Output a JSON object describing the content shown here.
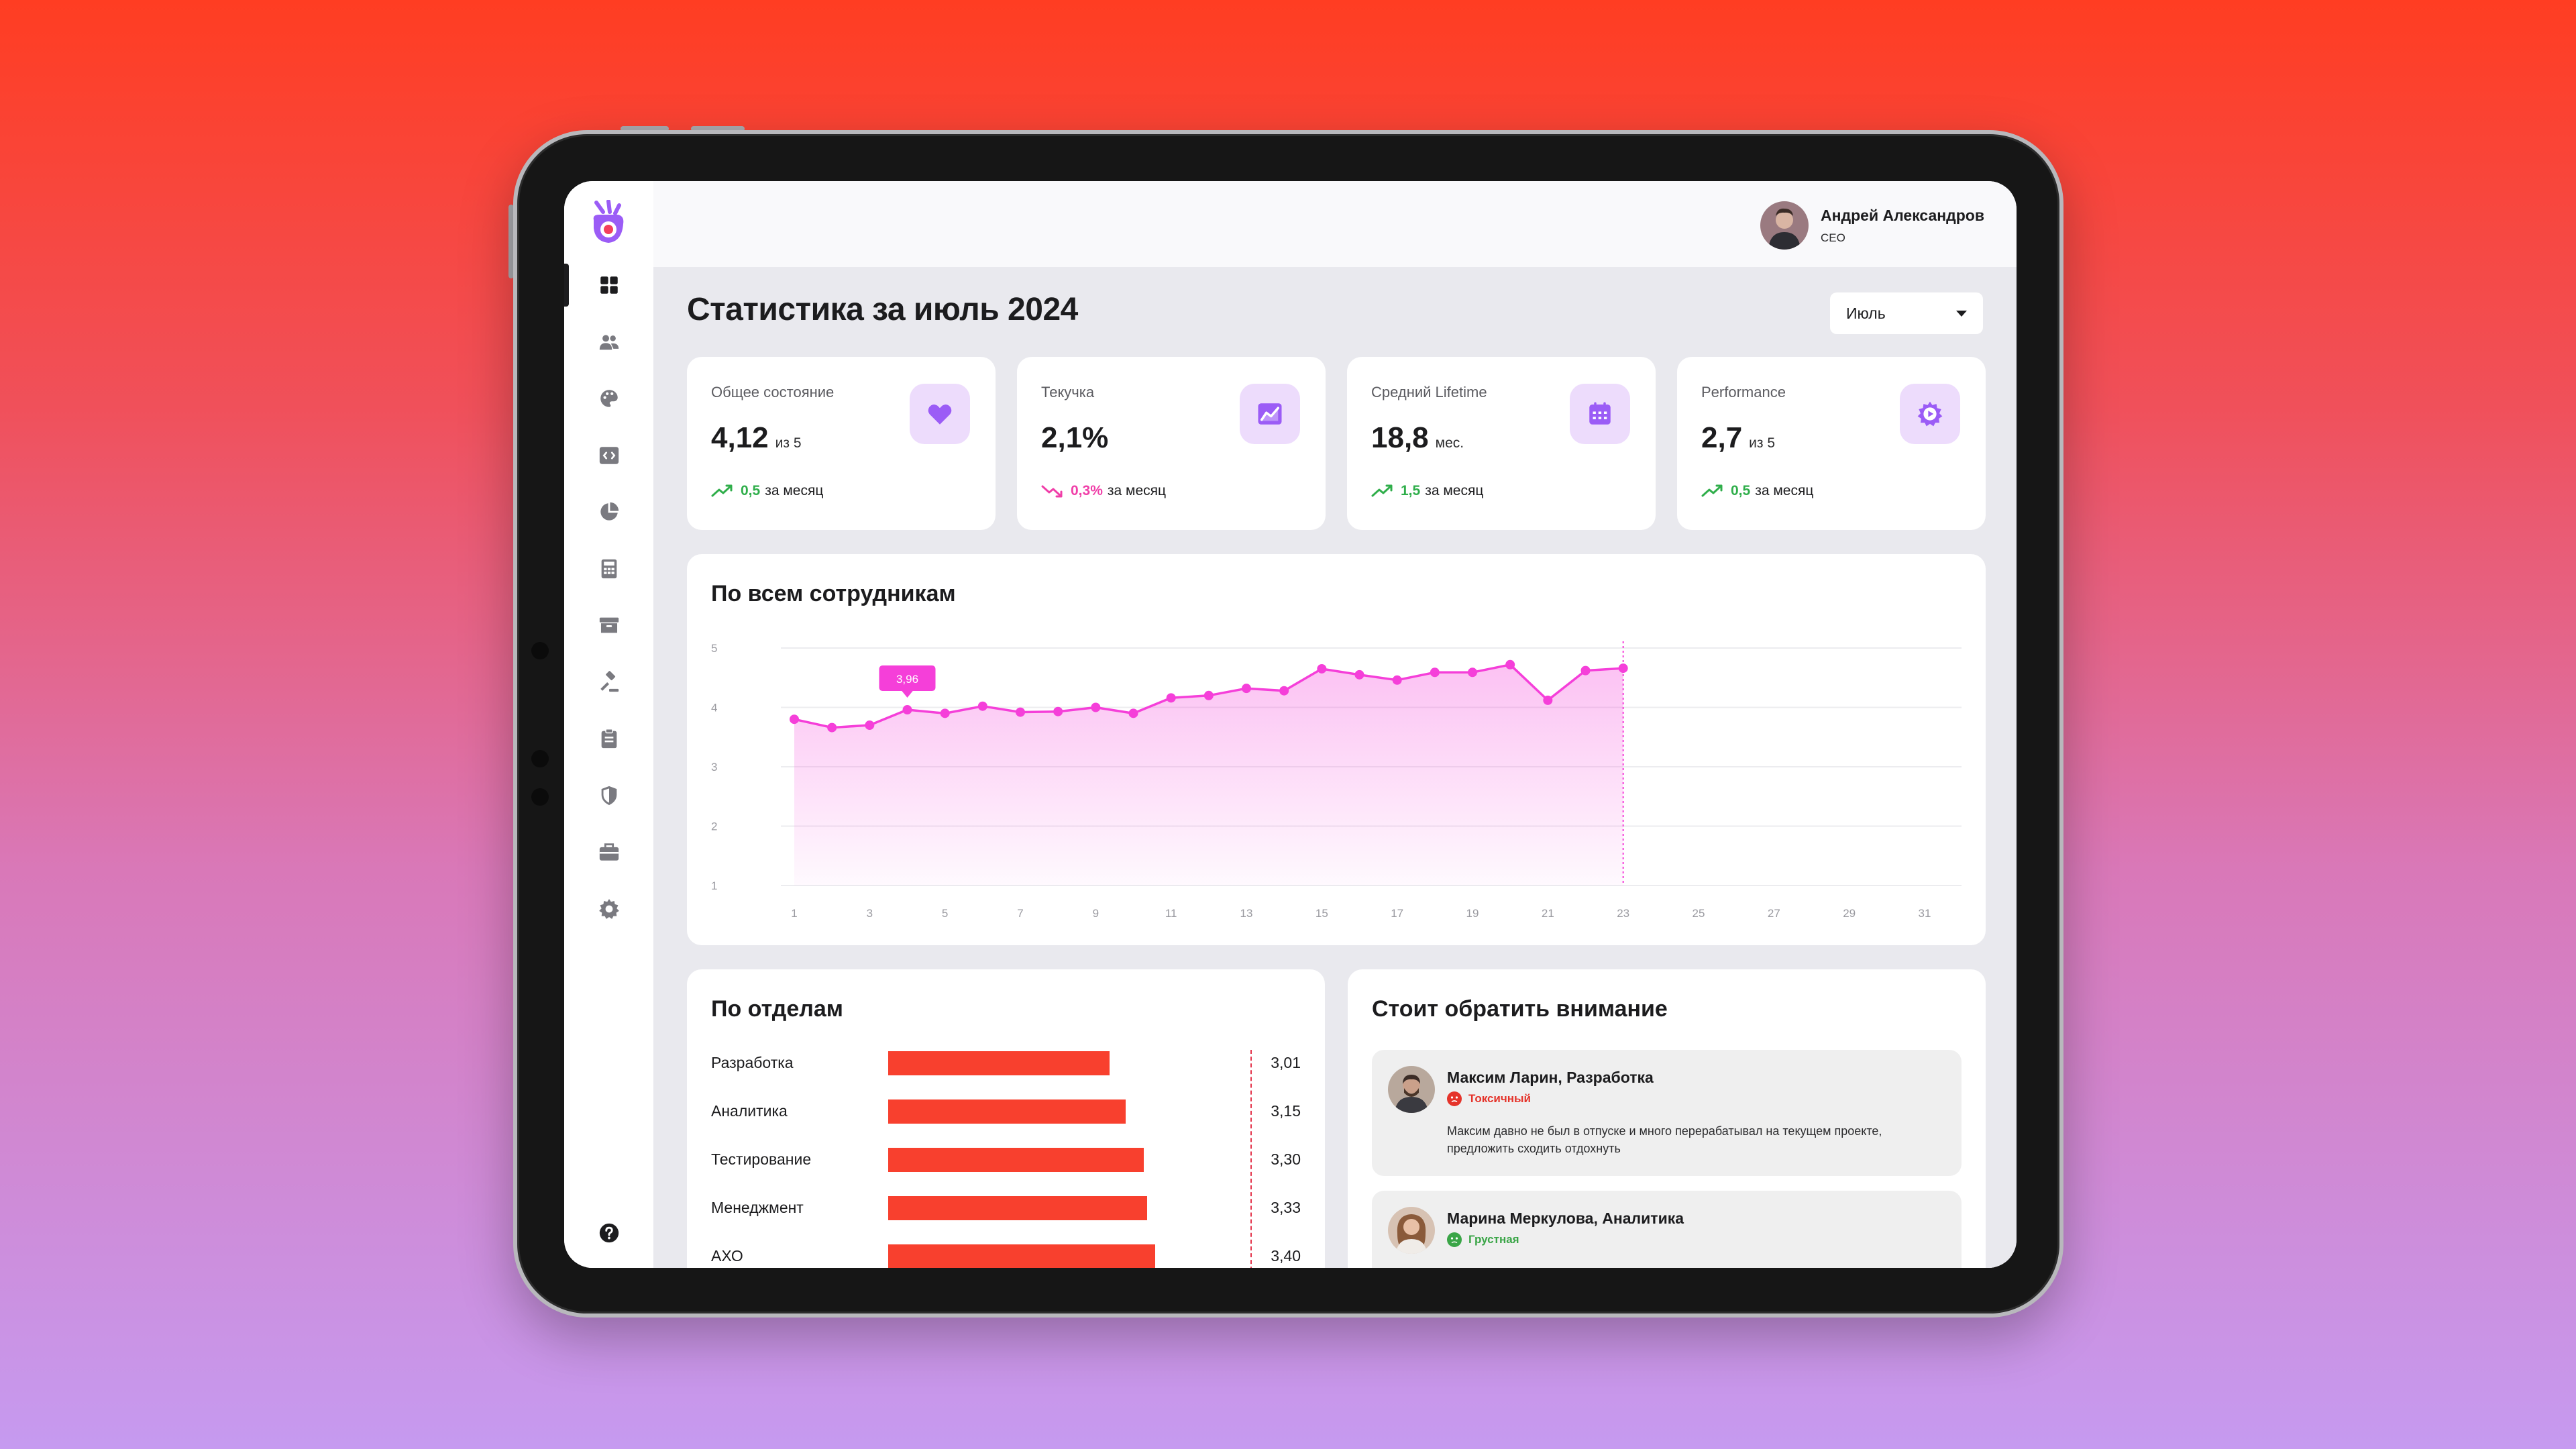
{
  "user": {
    "name": "Андрей Александров",
    "role": "CEO"
  },
  "page": {
    "title": "Статистика за июль 2024"
  },
  "month_select": {
    "value": "Июль"
  },
  "kpis": [
    {
      "label": "Общее состояние",
      "value": "4,12",
      "unit": "из 5",
      "delta": "0,5",
      "delta_suffix": "за месяц",
      "trend": "up",
      "icon": "heart-icon"
    },
    {
      "label": "Текучка",
      "value": "2,1%",
      "unit": "",
      "delta": "0,3%",
      "delta_suffix": "за месяц",
      "trend": "down",
      "icon": "chart-icon"
    },
    {
      "label": "Средний Lifetime",
      "value": "18,8",
      "unit": "мес.",
      "delta": "1,5",
      "delta_suffix": "за месяц",
      "trend": "up",
      "icon": "calendar-icon"
    },
    {
      "label": "Performance",
      "value": "2,7",
      "unit": "из 5",
      "delta": "0,5",
      "delta_suffix": "за месяц",
      "trend": "up",
      "icon": "gear-play-icon"
    }
  ],
  "employees_chart": {
    "title": "По всем сотрудникам",
    "tooltip": "3,96"
  },
  "chart_data": {
    "type": "area",
    "title": "По всем сотрудникам",
    "x_ticks": [
      "1",
      "3",
      "5",
      "7",
      "9",
      "11",
      "13",
      "15",
      "17",
      "19",
      "21",
      "23",
      "25",
      "27",
      "29",
      "31"
    ],
    "y_ticks": [
      "1",
      "2",
      "3",
      "4",
      "5"
    ],
    "ylim": [
      1,
      5
    ],
    "xlim": [
      1,
      31
    ],
    "x": [
      1,
      2,
      3,
      4,
      5,
      6,
      7,
      8,
      9,
      10,
      11,
      12,
      13,
      14,
      15,
      16,
      17,
      18,
      19,
      20,
      21,
      22,
      23
    ],
    "values": [
      3.8,
      3.66,
      3.7,
      3.96,
      3.9,
      4.02,
      3.92,
      3.93,
      4.0,
      3.9,
      4.16,
      4.2,
      4.32,
      4.28,
      4.65,
      4.55,
      4.46,
      4.59,
      4.59,
      4.72,
      4.12,
      4.62,
      4.66
    ],
    "highlight": {
      "x": 4,
      "label": "3,96"
    },
    "current_day": 23,
    "grid": true,
    "color": "#f53fd9"
  },
  "departments": {
    "title": "По отделам",
    "rows": [
      {
        "name": "Разработка",
        "value": "3,01",
        "score": 3.01
      },
      {
        "name": "Аналитика",
        "value": "3,15",
        "score": 3.15
      },
      {
        "name": "Тестирование",
        "value": "3,30",
        "score": 3.3
      },
      {
        "name": "Менеджмент",
        "value": "3,33",
        "score": 3.33
      },
      {
        "name": "АХО",
        "value": "3,40",
        "score": 3.4
      }
    ],
    "bar_color": "#f8402e"
  },
  "attention": {
    "title": "Стоит обратить внимание",
    "items": [
      {
        "name": "Максим Ларин, Разработка",
        "tag": "Токсичный",
        "tag_color": "#e5332a",
        "text": "Максим давно не был в отпуске и много перерабатывал на текущем проекте, предложить сходить отдохнуть"
      },
      {
        "name": "Марина Меркулова, Аналитика",
        "tag": "Грустная",
        "tag_color": "#3aa547",
        "text": ""
      }
    ]
  },
  "nav": [
    "dashboard-icon",
    "users-icon",
    "palette-icon",
    "code-icon",
    "pie-chart-icon",
    "calculator-icon",
    "archive-icon",
    "gavel-icon",
    "clipboard-icon",
    "shield-icon",
    "briefcase-icon",
    "settings-icon",
    "help-icon"
  ]
}
